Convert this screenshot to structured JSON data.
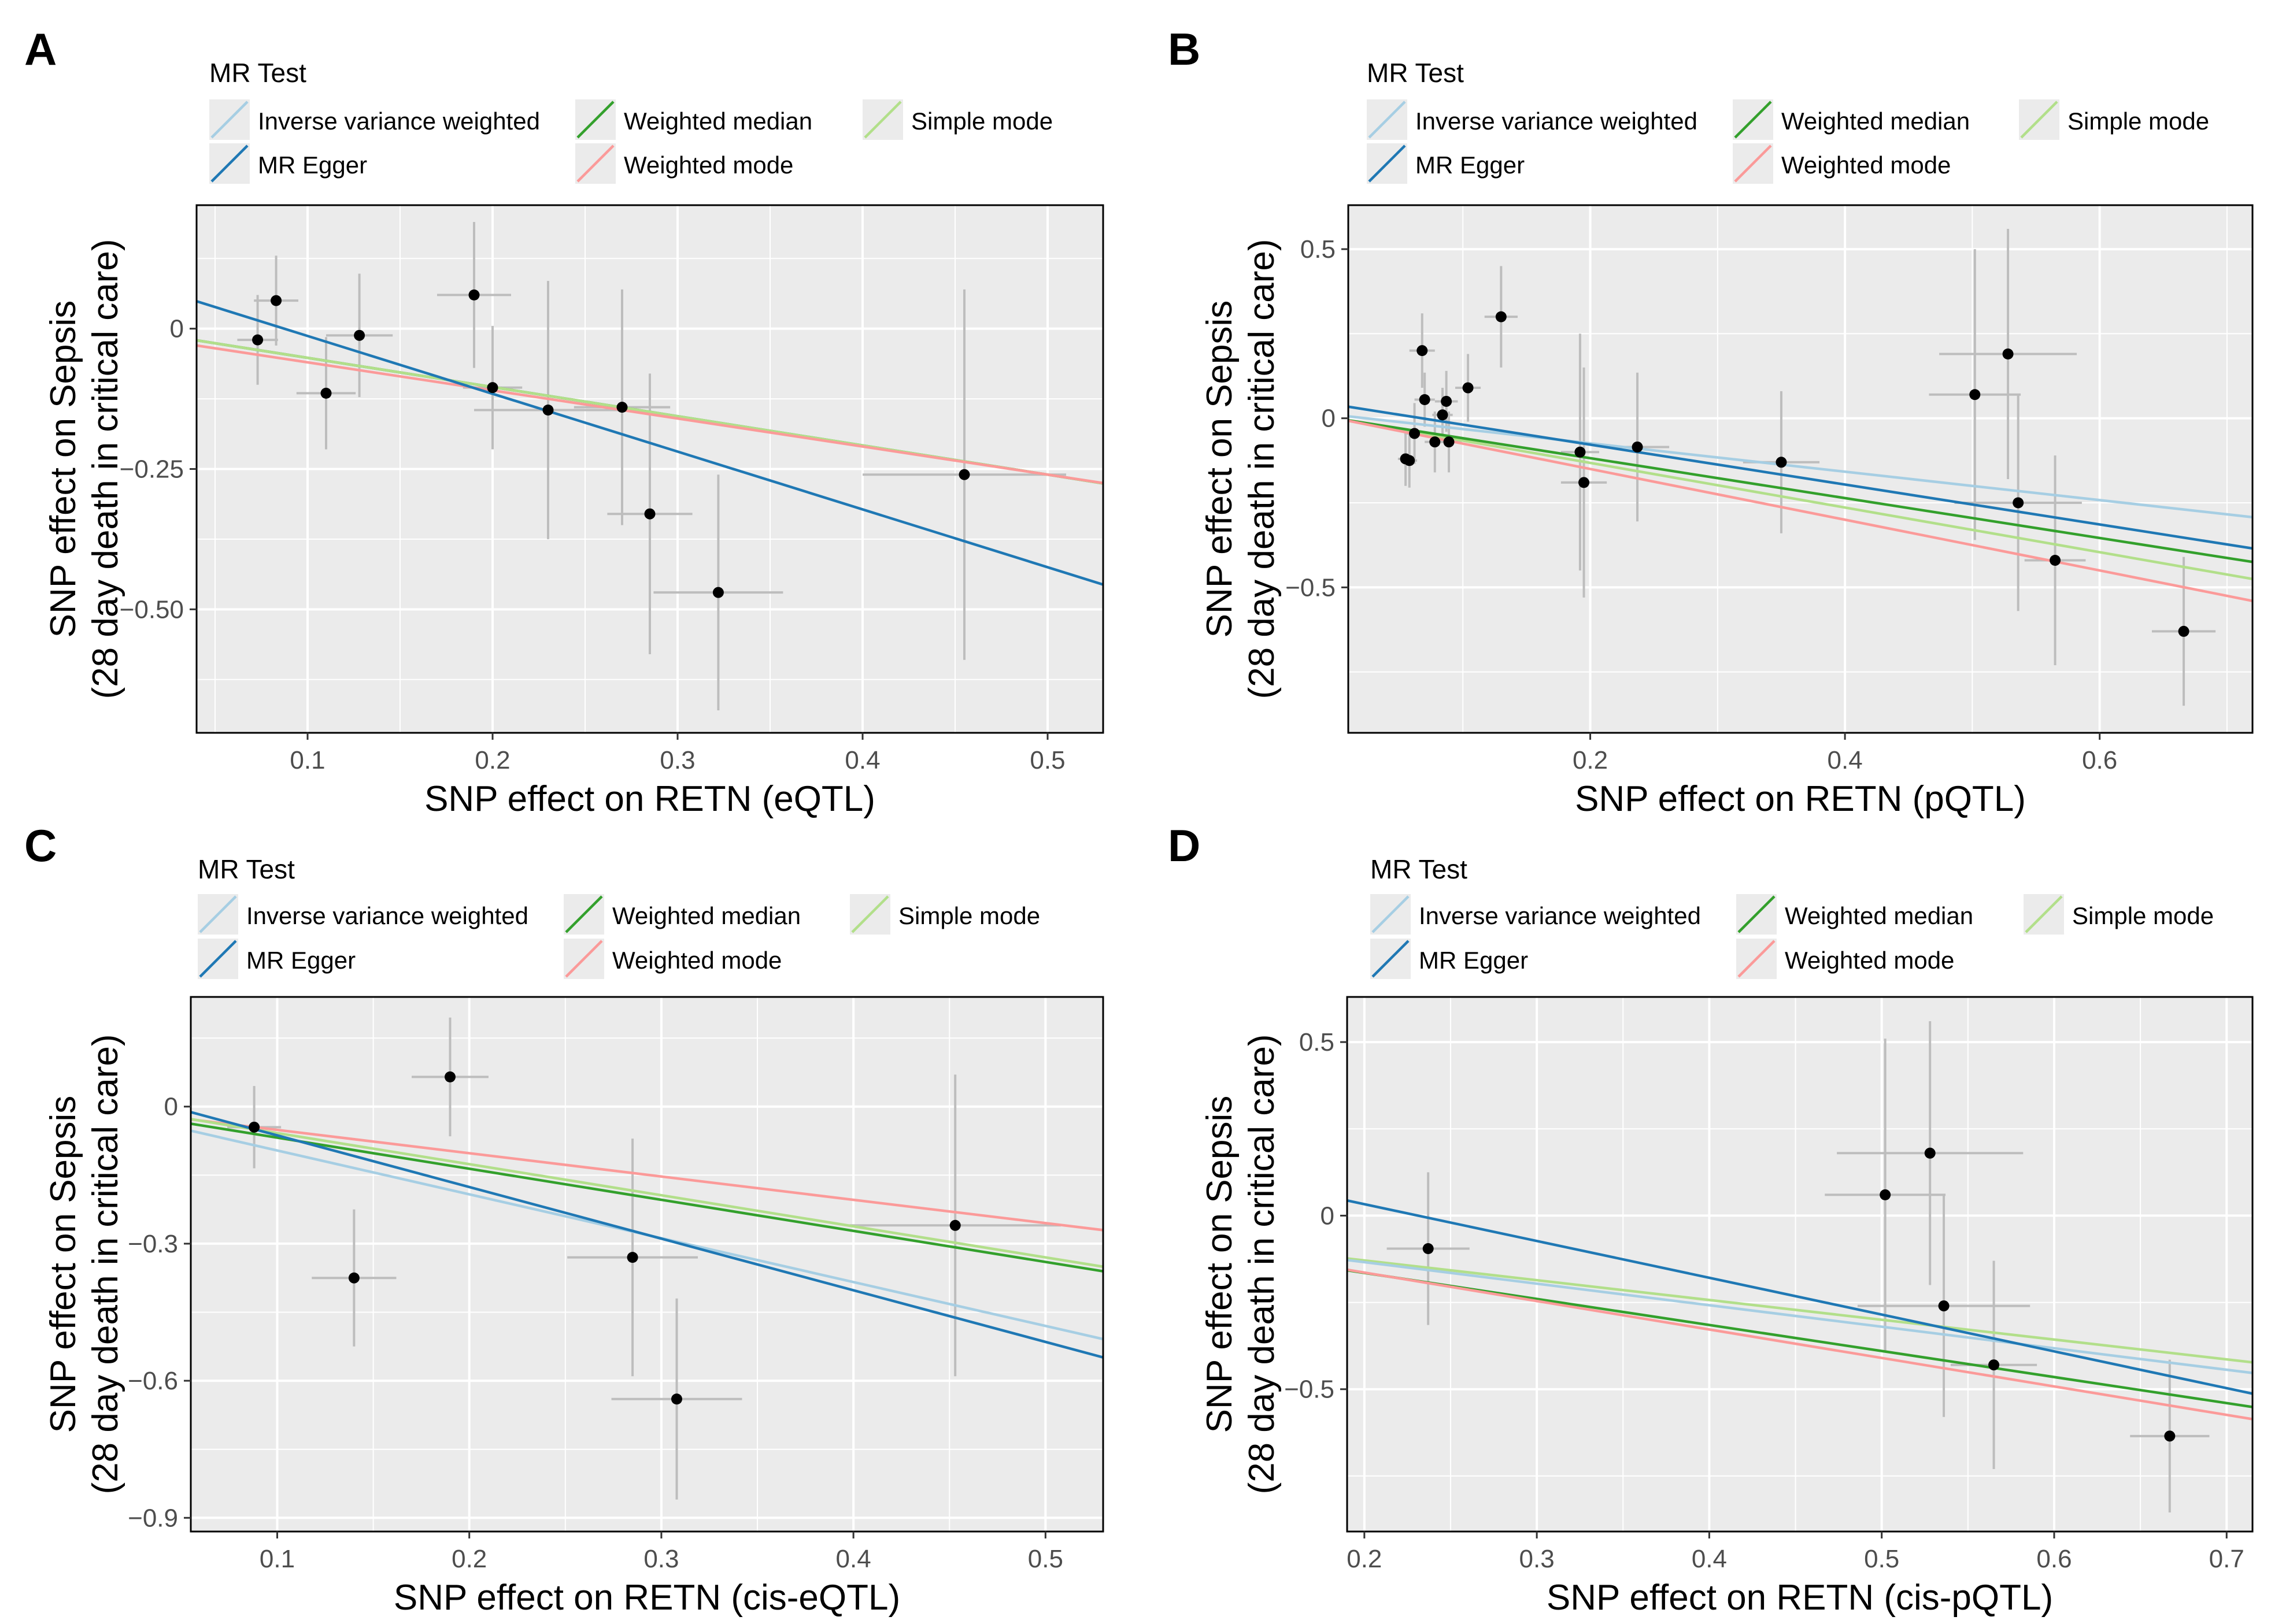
{
  "colors": {
    "panel_bg": "#ebebeb",
    "grid": "#ffffff",
    "point": "#000000",
    "errorbar": "#bdbdbd",
    "tick_text": "#4d4d4d",
    "axis_text": "#000000"
  },
  "chart_data": [
    {
      "type": "scatter",
      "panel": "A",
      "legend_title": "MR Test",
      "xlabel": "SNP effect on RETN (eQTL)",
      "ylabel": [
        "SNP effect on Sepsis",
        "(28 day death in critical care)"
      ],
      "xlim": [
        0.04,
        0.53
      ],
      "ylim": [
        -0.72,
        0.22
      ],
      "xticks": [
        0.1,
        0.2,
        0.3,
        0.4,
        0.5
      ],
      "xtick_labels": [
        "0.1",
        "0.2",
        "0.3",
        "0.4",
        "0.5"
      ],
      "yticks": [
        0,
        -0.25,
        -0.5
      ],
      "ytick_labels": [
        "0",
        "−0.25",
        "−0.50"
      ],
      "legend": [
        {
          "name": "Inverse variance weighted",
          "color": "#a6cee3"
        },
        {
          "name": "Weighted median",
          "color": "#33a02c"
        },
        {
          "name": "Simple mode",
          "color": "#b2df8a"
        },
        {
          "name": "MR Egger",
          "color": "#1f78b4"
        },
        {
          "name": "Weighted mode",
          "color": "#fb9a99"
        }
      ],
      "lines": [
        {
          "name": "Inverse variance weighted",
          "color": "#a6cee3",
          "slope": -0.52,
          "intercept": 0
        },
        {
          "name": "Weighted median",
          "color": "#33a02c",
          "slope": -0.52,
          "intercept": 0
        },
        {
          "name": "Simple mode",
          "color": "#b2df8a",
          "slope": -0.52,
          "intercept": 0
        },
        {
          "name": "Weighted mode",
          "color": "#fb9a99",
          "slope": -0.5,
          "intercept": -0.01
        },
        {
          "name": "MR Egger",
          "color": "#1f78b4",
          "slope": -1.03,
          "intercept": 0.09
        }
      ],
      "points": [
        {
          "x": 0.073,
          "y": -0.02,
          "xerr": 0.011,
          "yerr": 0.08
        },
        {
          "x": 0.083,
          "y": 0.05,
          "xerr": 0.012,
          "yerr": 0.08
        },
        {
          "x": 0.11,
          "y": -0.115,
          "xerr": 0.016,
          "yerr": 0.1
        },
        {
          "x": 0.128,
          "y": -0.012,
          "xerr": 0.018,
          "yerr": 0.11
        },
        {
          "x": 0.19,
          "y": 0.06,
          "xerr": 0.02,
          "yerr": 0.13
        },
        {
          "x": 0.2,
          "y": -0.105,
          "xerr": 0.016,
          "yerr": 0.11
        },
        {
          "x": 0.23,
          "y": -0.145,
          "xerr": 0.04,
          "yerr": 0.23
        },
        {
          "x": 0.27,
          "y": -0.14,
          "xerr": 0.026,
          "yerr": 0.21
        },
        {
          "x": 0.285,
          "y": -0.33,
          "xerr": 0.023,
          "yerr": 0.25
        },
        {
          "x": 0.322,
          "y": -0.47,
          "xerr": 0.035,
          "yerr": 0.21
        },
        {
          "x": 0.455,
          "y": -0.26,
          "xerr": 0.055,
          "yerr": 0.33
        }
      ]
    },
    {
      "type": "scatter",
      "panel": "B",
      "legend_title": "MR Test",
      "xlabel": "SNP effect on RETN (pQTL)",
      "ylabel": [
        "SNP effect on Sepsis",
        "(28 day death in critical care)"
      ],
      "xlim": [
        0.01,
        0.72
      ],
      "ylim": [
        -0.93,
        0.63
      ],
      "xticks": [
        0.2,
        0.4,
        0.6
      ],
      "xtick_labels": [
        "0.2",
        "0.4",
        "0.6"
      ],
      "yticks": [
        0.5,
        0,
        -0.5
      ],
      "ytick_labels": [
        "0.5",
        "0",
        "−0.5"
      ],
      "legend": [
        {
          "name": "Inverse variance weighted",
          "color": "#a6cee3"
        },
        {
          "name": "Weighted median",
          "color": "#33a02c"
        },
        {
          "name": "Simple mode",
          "color": "#b2df8a"
        },
        {
          "name": "MR Egger",
          "color": "#1f78b4"
        },
        {
          "name": "Weighted mode",
          "color": "#fb9a99"
        }
      ],
      "lines": [
        {
          "name": "Inverse variance weighted",
          "color": "#a6cee3",
          "slope": -0.42,
          "intercept": 0.01
        },
        {
          "name": "Simple mode",
          "color": "#b2df8a",
          "slope": -0.66,
          "intercept": 0.0
        },
        {
          "name": "Weighted median",
          "color": "#33a02c",
          "slope": -0.59,
          "intercept": 0.0
        },
        {
          "name": "MR Egger",
          "color": "#1f78b4",
          "slope": -0.59,
          "intercept": 0.04
        },
        {
          "name": "Weighted mode",
          "color": "#fb9a99",
          "slope": -0.75,
          "intercept": 0.0
        }
      ],
      "points": [
        {
          "x": 0.055,
          "y": -0.12,
          "xerr": 0.006,
          "yerr": 0.08
        },
        {
          "x": 0.058,
          "y": -0.125,
          "xerr": 0.006,
          "yerr": 0.08
        },
        {
          "x": 0.062,
          "y": -0.045,
          "xerr": 0.008,
          "yerr": 0.09
        },
        {
          "x": 0.068,
          "y": 0.2,
          "xerr": 0.01,
          "yerr": 0.11
        },
        {
          "x": 0.07,
          "y": 0.055,
          "xerr": 0.008,
          "yerr": 0.08
        },
        {
          "x": 0.078,
          "y": -0.07,
          "xerr": 0.008,
          "yerr": 0.09
        },
        {
          "x": 0.084,
          "y": 0.01,
          "xerr": 0.008,
          "yerr": 0.08
        },
        {
          "x": 0.087,
          "y": 0.05,
          "xerr": 0.009,
          "yerr": 0.09
        },
        {
          "x": 0.089,
          "y": -0.07,
          "xerr": 0.01,
          "yerr": 0.09
        },
        {
          "x": 0.104,
          "y": 0.09,
          "xerr": 0.01,
          "yerr": 0.1
        },
        {
          "x": 0.13,
          "y": 0.3,
          "xerr": 0.013,
          "yerr": 0.15
        },
        {
          "x": 0.192,
          "y": -0.1,
          "xerr": 0.015,
          "yerr": 0.35
        },
        {
          "x": 0.195,
          "y": -0.19,
          "xerr": 0.018,
          "yerr": 0.34
        },
        {
          "x": 0.237,
          "y": -0.085,
          "xerr": 0.025,
          "yerr": 0.22
        },
        {
          "x": 0.35,
          "y": -0.13,
          "xerr": 0.03,
          "yerr": 0.21
        },
        {
          "x": 0.502,
          "y": 0.07,
          "xerr": 0.036,
          "yerr": 0.43
        },
        {
          "x": 0.528,
          "y": 0.19,
          "xerr": 0.054,
          "yerr": 0.37
        },
        {
          "x": 0.536,
          "y": -0.25,
          "xerr": 0.05,
          "yerr": 0.32
        },
        {
          "x": 0.565,
          "y": -0.42,
          "xerr": 0.024,
          "yerr": 0.31
        },
        {
          "x": 0.666,
          "y": -0.63,
          "xerr": 0.025,
          "yerr": 0.22
        }
      ]
    },
    {
      "type": "scatter",
      "panel": "C",
      "legend_title": "MR Test",
      "xlabel": "SNP effect on RETN (cis-eQTL)",
      "ylabel": [
        "SNP effect on Sepsis",
        "(28 day death in critical care)"
      ],
      "xlim": [
        0.055,
        0.53
      ],
      "ylim": [
        -0.93,
        0.24
      ],
      "xticks": [
        0.1,
        0.2,
        0.3,
        0.4,
        0.5
      ],
      "xtick_labels": [
        "0.1",
        "0.2",
        "0.3",
        "0.4",
        "0.5"
      ],
      "yticks": [
        0,
        -0.3,
        -0.6,
        -0.9
      ],
      "ytick_labels": [
        "0",
        "−0.3",
        "−0.6",
        "−0.9"
      ],
      "legend": [
        {
          "name": "Inverse variance weighted",
          "color": "#a6cee3"
        },
        {
          "name": "Weighted median",
          "color": "#33a02c"
        },
        {
          "name": "Simple mode",
          "color": "#b2df8a"
        },
        {
          "name": "MR Egger",
          "color": "#1f78b4"
        },
        {
          "name": "Weighted mode",
          "color": "#fb9a99"
        }
      ],
      "lines": [
        {
          "name": "Weighted mode",
          "color": "#fb9a99",
          "slope": -0.51,
          "intercept": 0.0
        },
        {
          "name": "Simple mode",
          "color": "#b2df8a",
          "slope": -0.68,
          "intercept": 0.01
        },
        {
          "name": "Weighted median",
          "color": "#33a02c",
          "slope": -0.68,
          "intercept": 0.0
        },
        {
          "name": "Inverse variance weighted",
          "color": "#a6cee3",
          "slope": -0.96,
          "intercept": 0.0
        },
        {
          "name": "MR Egger",
          "color": "#1f78b4",
          "slope": -1.13,
          "intercept": 0.05
        }
      ],
      "points": [
        {
          "x": 0.088,
          "y": -0.045,
          "xerr": 0.014,
          "yerr": 0.09
        },
        {
          "x": 0.14,
          "y": -0.375,
          "xerr": 0.022,
          "yerr": 0.15
        },
        {
          "x": 0.19,
          "y": 0.065,
          "xerr": 0.02,
          "yerr": 0.13
        },
        {
          "x": 0.285,
          "y": -0.33,
          "xerr": 0.034,
          "yerr": 0.26
        },
        {
          "x": 0.308,
          "y": -0.64,
          "xerr": 0.034,
          "yerr": 0.22
        },
        {
          "x": 0.453,
          "y": -0.26,
          "xerr": 0.055,
          "yerr": 0.33
        }
      ]
    },
    {
      "type": "scatter",
      "panel": "D",
      "legend_title": "MR Test",
      "xlabel": "SNP effect on RETN (cis-pQTL)",
      "ylabel": [
        "SNP effect on Sepsis",
        "(28 day death in critical care)"
      ],
      "xlim": [
        0.19,
        0.715
      ],
      "ylim": [
        -0.91,
        0.63
      ],
      "xticks": [
        0.2,
        0.3,
        0.4,
        0.5,
        0.6,
        0.7
      ],
      "xtick_labels": [
        "0.2",
        "0.3",
        "0.4",
        "0.5",
        "0.6",
        "0.7"
      ],
      "yticks": [
        0.5,
        0,
        -0.5
      ],
      "ytick_labels": [
        "0.5",
        "0",
        "−0.5"
      ],
      "legend": [
        {
          "name": "Inverse variance weighted",
          "color": "#a6cee3"
        },
        {
          "name": "Weighted median",
          "color": "#33a02c"
        },
        {
          "name": "Simple mode",
          "color": "#b2df8a"
        },
        {
          "name": "MR Egger",
          "color": "#1f78b4"
        },
        {
          "name": "Weighted mode",
          "color": "#fb9a99"
        }
      ],
      "lines": [
        {
          "name": "Simple mode",
          "color": "#b2df8a",
          "slope": -0.57,
          "intercept": -0.015
        },
        {
          "name": "Inverse variance weighted",
          "color": "#a6cee3",
          "slope": -0.62,
          "intercept": -0.01
        },
        {
          "name": "MR Egger",
          "color": "#1f78b4",
          "slope": -1.06,
          "intercept": 0.245
        },
        {
          "name": "Weighted median",
          "color": "#33a02c",
          "slope": -0.75,
          "intercept": -0.015
        },
        {
          "name": "Weighted mode",
          "color": "#fb9a99",
          "slope": -0.82,
          "intercept": 0.0
        }
      ],
      "points": [
        {
          "x": 0.237,
          "y": -0.095,
          "xerr": 0.024,
          "yerr": 0.22
        },
        {
          "x": 0.502,
          "y": 0.06,
          "xerr": 0.035,
          "yerr": 0.45
        },
        {
          "x": 0.528,
          "y": 0.18,
          "xerr": 0.054,
          "yerr": 0.38
        },
        {
          "x": 0.536,
          "y": -0.26,
          "xerr": 0.05,
          "yerr": 0.32
        },
        {
          "x": 0.565,
          "y": -0.43,
          "xerr": 0.025,
          "yerr": 0.3
        },
        {
          "x": 0.667,
          "y": -0.635,
          "xerr": 0.023,
          "yerr": 0.22
        }
      ]
    }
  ]
}
